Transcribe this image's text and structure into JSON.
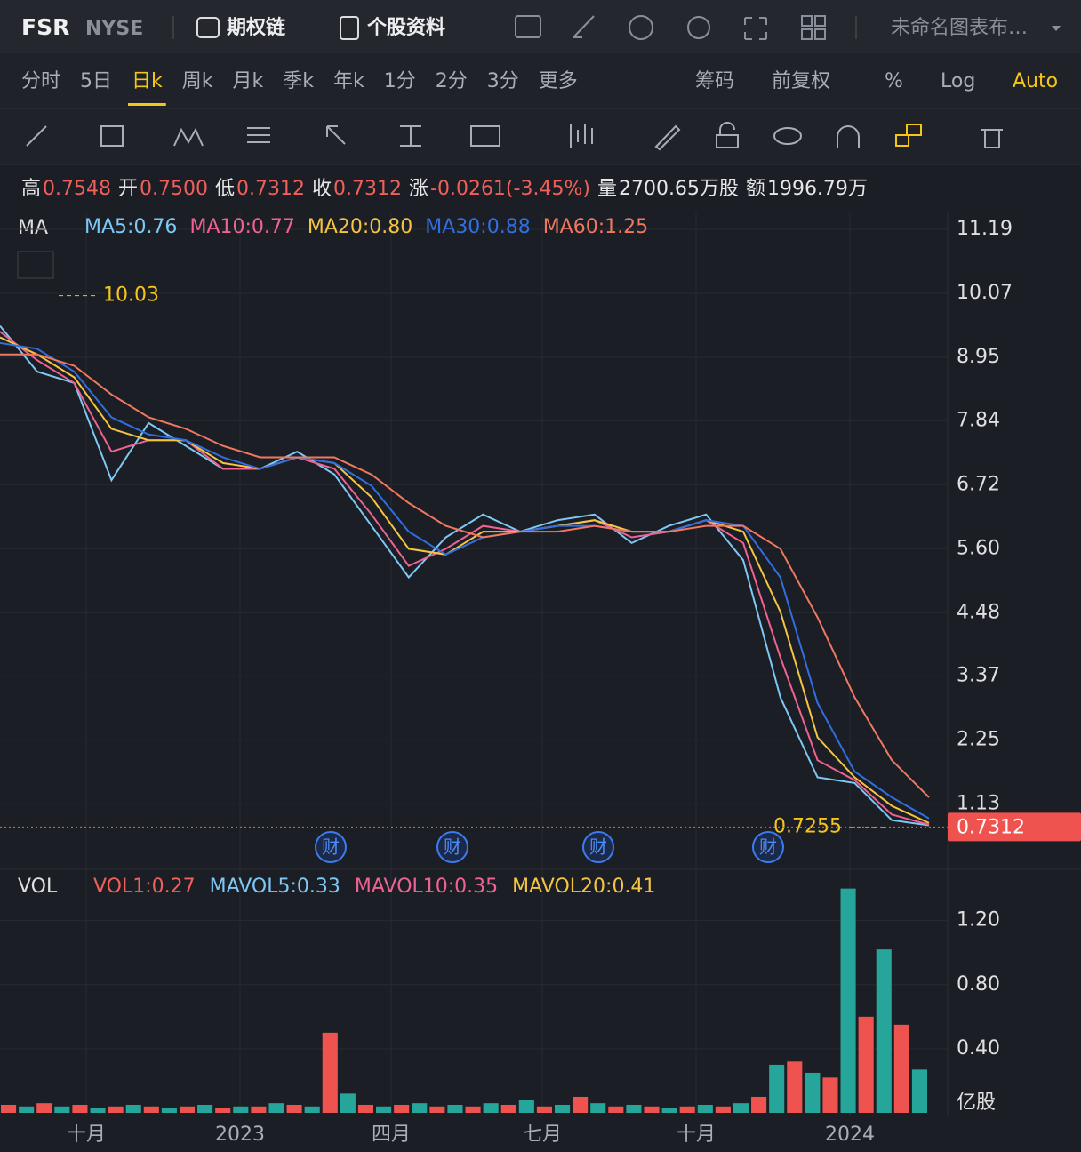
{
  "header": {
    "symbol": "FSR",
    "exchange": "NYSE",
    "options_chain": "期权链",
    "profile": "个股资料",
    "layout_name": "未命名图表布…"
  },
  "periods": [
    "分时",
    "5日",
    "日k",
    "周k",
    "月k",
    "季k",
    "年k",
    "1分",
    "2分",
    "3分",
    "更多"
  ],
  "active_period": 2,
  "right_tools": [
    "筹码",
    "前复权",
    "%",
    "Log",
    "Auto"
  ],
  "quote": [
    {
      "label": "高",
      "value": "0.7548",
      "color": "#f0605a"
    },
    {
      "label": "开",
      "value": "0.7500",
      "color": "#f0605a"
    },
    {
      "label": "低",
      "value": "0.7312",
      "color": "#f0605a"
    },
    {
      "label": "收",
      "value": "0.7312",
      "color": "#f0605a"
    },
    {
      "label": "涨",
      "value": "-0.0261(-3.45%)",
      "color": "#f0605a"
    },
    {
      "label": "量",
      "value": "2700.65万股",
      "color": "#e8e8e8"
    },
    {
      "label": "额",
      "value": "1996.79万",
      "color": "#e8e8e8"
    }
  ],
  "chart_data": [
    {
      "type": "line",
      "indicator": "MA",
      "series": [
        {
          "legend": "MA5:0.76",
          "color": "#7ec8f5",
          "values": [
            9.5,
            8.7,
            8.5,
            6.8,
            7.8,
            7.4,
            7.0,
            7.0,
            7.3,
            6.9,
            6.0,
            5.1,
            5.8,
            6.2,
            5.9,
            6.1,
            6.2,
            5.7,
            6.0,
            6.2,
            5.4,
            3.0,
            1.6,
            1.5,
            0.85,
            0.76
          ]
        },
        {
          "legend": "MA10:0.77",
          "color": "#f06292",
          "values": [
            9.4,
            8.9,
            8.5,
            7.3,
            7.5,
            7.5,
            7.0,
            7.0,
            7.2,
            7.0,
            6.2,
            5.3,
            5.6,
            6.0,
            5.9,
            6.0,
            6.1,
            5.8,
            5.9,
            6.1,
            5.7,
            3.7,
            1.9,
            1.55,
            0.95,
            0.77
          ]
        },
        {
          "legend": "MA20:0.80",
          "color": "#f5c542",
          "values": [
            9.3,
            9.0,
            8.6,
            7.7,
            7.5,
            7.5,
            7.1,
            7.0,
            7.2,
            7.1,
            6.5,
            5.6,
            5.5,
            5.9,
            5.9,
            6.0,
            6.1,
            5.9,
            5.9,
            6.1,
            5.9,
            4.5,
            2.3,
            1.6,
            1.1,
            0.8
          ]
        },
        {
          "legend": "MA30:0.88",
          "color": "#2f6fe0",
          "values": [
            9.2,
            9.1,
            8.7,
            7.9,
            7.6,
            7.5,
            7.2,
            7.0,
            7.2,
            7.1,
            6.7,
            5.9,
            5.5,
            5.8,
            5.9,
            6.0,
            6.0,
            5.9,
            5.9,
            6.1,
            6.0,
            5.1,
            2.9,
            1.7,
            1.25,
            0.88
          ]
        },
        {
          "legend": "MA60:1.25",
          "color": "#f07860",
          "values": [
            9.0,
            9.0,
            8.8,
            8.3,
            7.9,
            7.7,
            7.4,
            7.2,
            7.2,
            7.2,
            6.9,
            6.4,
            6.0,
            5.8,
            5.9,
            5.9,
            6.0,
            5.9,
            5.9,
            6.0,
            6.0,
            5.6,
            4.4,
            3.0,
            1.9,
            1.25
          ]
        }
      ],
      "ylim": [
        -0.01,
        11.47
      ],
      "yticks": [
        11.19,
        10.07,
        8.95,
        7.84,
        6.72,
        {
          "value": 5.6,
          "label": "5.60"
        },
        4.48,
        3.37,
        2.25,
        1.13
      ],
      "max_mark": 10.03,
      "min_mark": 0.7255,
      "last_price": 0.7312,
      "events": [
        "财",
        "财",
        "财",
        "财"
      ]
    },
    {
      "type": "bar",
      "indicator": "VOL",
      "legends": [
        {
          "legend": "VOL1:0.27",
          "color": "#f0605a"
        },
        {
          "legend": "MAVOL5:0.33",
          "color": "#7ec8f5"
        },
        {
          "legend": "MAVOL10:0.35",
          "color": "#f06292"
        },
        {
          "legend": "MAVOL20:0.41",
          "color": "#f5c542"
        }
      ],
      "values": [
        0.05,
        0.04,
        0.06,
        0.04,
        0.05,
        0.03,
        0.04,
        0.05,
        0.04,
        0.03,
        0.04,
        0.05,
        0.03,
        0.04,
        0.04,
        0.06,
        0.05,
        0.04,
        0.5,
        0.12,
        0.05,
        0.04,
        0.05,
        0.06,
        0.04,
        0.05,
        0.04,
        0.06,
        0.05,
        0.08,
        0.04,
        0.05,
        0.1,
        0.06,
        0.04,
        0.05,
        0.04,
        0.03,
        0.04,
        0.05,
        0.04,
        0.06,
        0.1,
        0.3,
        0.32,
        0.25,
        0.22,
        1.4,
        0.6,
        1.02,
        0.55,
        0.27
      ],
      "ylim": [
        0,
        1.52
      ],
      "yticks": [
        {
          "value": 1.2,
          "label": "1.20"
        },
        {
          "value": 0.8,
          "label": "0.80"
        },
        {
          "value": 0.4,
          "label": "0.40"
        }
      ],
      "unit": "亿股",
      "x_labels": [
        "十月",
        "2023",
        "四月",
        "七月",
        "十月",
        "2024"
      ]
    }
  ]
}
